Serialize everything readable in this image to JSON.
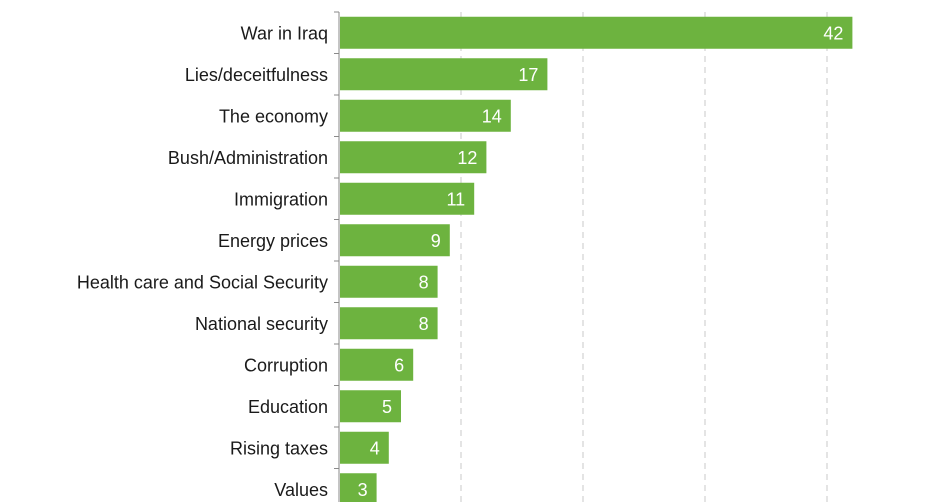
{
  "chart_data": {
    "type": "bar",
    "orientation": "horizontal",
    "categories": [
      "War in Iraq",
      "Lies/deceitfulness",
      "The economy",
      "Bush/Administration",
      "Immigration",
      "Energy prices",
      "Health care and Social Security",
      "National security",
      "Corruption",
      "Education",
      "Rising taxes",
      "Values"
    ],
    "values": [
      42,
      17,
      14,
      12,
      11,
      9,
      8,
      8,
      6,
      5,
      4,
      3
    ],
    "xlim": [
      0,
      50
    ],
    "grid": true,
    "bar_color": "#6db33f",
    "label_color": "#ffffff"
  }
}
